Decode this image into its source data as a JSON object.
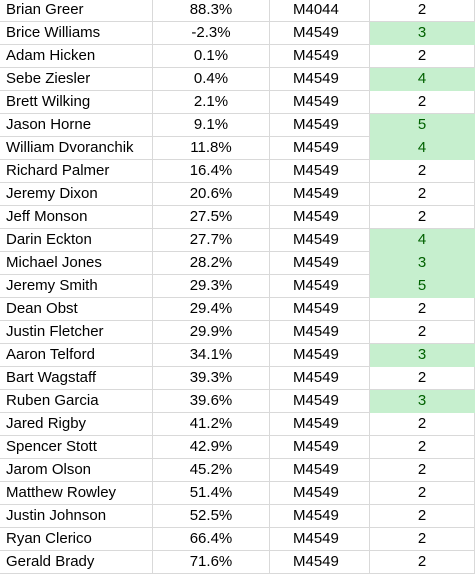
{
  "rows": [
    {
      "name": "Brian Greer",
      "pct": "88.3%",
      "code": "M4044",
      "score": "2",
      "highlight": false
    },
    {
      "name": "Brice Williams",
      "pct": "-2.3%",
      "code": "M4549",
      "score": "3",
      "highlight": true
    },
    {
      "name": "Adam Hicken",
      "pct": "0.1%",
      "code": "M4549",
      "score": "2",
      "highlight": false
    },
    {
      "name": "Sebe Ziesler",
      "pct": "0.4%",
      "code": "M4549",
      "score": "4",
      "highlight": true
    },
    {
      "name": "Brett Wilking",
      "pct": "2.1%",
      "code": "M4549",
      "score": "2",
      "highlight": false
    },
    {
      "name": "Jason Horne",
      "pct": "9.1%",
      "code": "M4549",
      "score": "5",
      "highlight": true
    },
    {
      "name": "William Dvoranchik",
      "pct": "11.8%",
      "code": "M4549",
      "score": "4",
      "highlight": true
    },
    {
      "name": "Richard Palmer",
      "pct": "16.4%",
      "code": "M4549",
      "score": "2",
      "highlight": false
    },
    {
      "name": "Jeremy Dixon",
      "pct": "20.6%",
      "code": "M4549",
      "score": "2",
      "highlight": false
    },
    {
      "name": "Jeff Monson",
      "pct": "27.5%",
      "code": "M4549",
      "score": "2",
      "highlight": false
    },
    {
      "name": "Darin Eckton",
      "pct": "27.7%",
      "code": "M4549",
      "score": "4",
      "highlight": true
    },
    {
      "name": "Michael Jones",
      "pct": "28.2%",
      "code": "M4549",
      "score": "3",
      "highlight": true
    },
    {
      "name": "Jeremy Smith",
      "pct": "29.3%",
      "code": "M4549",
      "score": "5",
      "highlight": true
    },
    {
      "name": "Dean Obst",
      "pct": "29.4%",
      "code": "M4549",
      "score": "2",
      "highlight": false
    },
    {
      "name": "Justin Fletcher",
      "pct": "29.9%",
      "code": "M4549",
      "score": "2",
      "highlight": false
    },
    {
      "name": "Aaron Telford",
      "pct": "34.1%",
      "code": "M4549",
      "score": "3",
      "highlight": true
    },
    {
      "name": "Bart Wagstaff",
      "pct": "39.3%",
      "code": "M4549",
      "score": "2",
      "highlight": false
    },
    {
      "name": "Ruben Garcia",
      "pct": "39.6%",
      "code": "M4549",
      "score": "3",
      "highlight": true
    },
    {
      "name": "Jared Rigby",
      "pct": "41.2%",
      "code": "M4549",
      "score": "2",
      "highlight": false
    },
    {
      "name": "Spencer Stott",
      "pct": "42.9%",
      "code": "M4549",
      "score": "2",
      "highlight": false
    },
    {
      "name": "Jarom Olson",
      "pct": "45.2%",
      "code": "M4549",
      "score": "2",
      "highlight": false
    },
    {
      "name": "Matthew Rowley",
      "pct": "51.4%",
      "code": "M4549",
      "score": "2",
      "highlight": false
    },
    {
      "name": "Justin Johnson",
      "pct": "52.5%",
      "code": "M4549",
      "score": "2",
      "highlight": false
    },
    {
      "name": "Ryan Clerico",
      "pct": "66.4%",
      "code": "M4549",
      "score": "2",
      "highlight": false
    },
    {
      "name": "Gerald Brady",
      "pct": "71.6%",
      "code": "M4549",
      "score": "2",
      "highlight": false
    }
  ],
  "colors": {
    "highlight_fill": "#c6efce",
    "highlight_text": "#006100",
    "gridline": "#d9d9d9"
  }
}
